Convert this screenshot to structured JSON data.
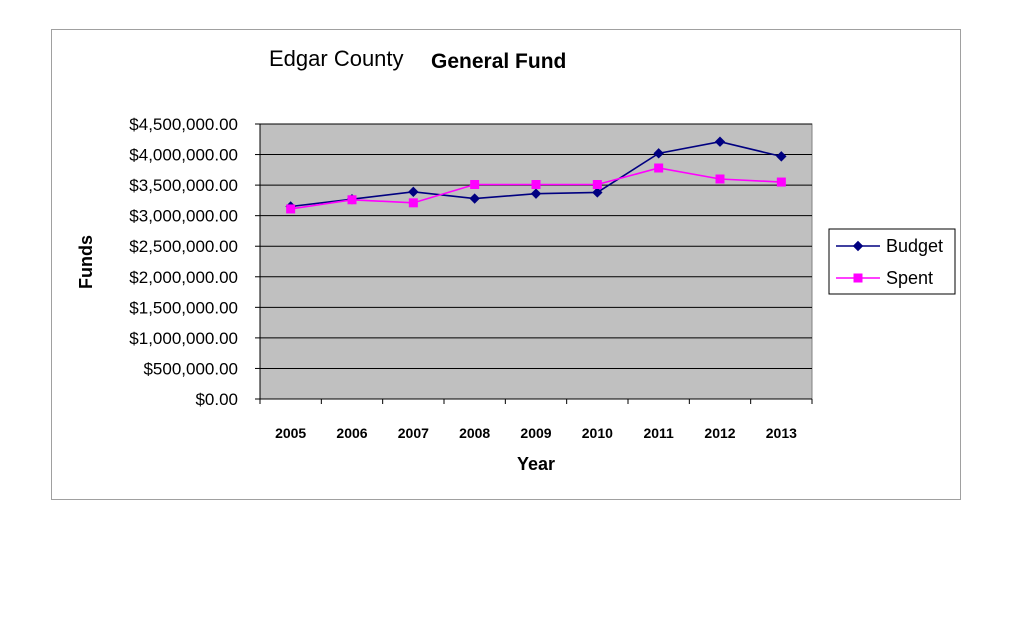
{
  "chart_data": {
    "type": "line",
    "title_parts": [
      "Edgar County",
      "General Fund"
    ],
    "xlabel": "Year",
    "ylabel": "Funds",
    "categories": [
      "2005",
      "2006",
      "2007",
      "2008",
      "2009",
      "2010",
      "2011",
      "2012",
      "2013"
    ],
    "ylim": [
      0,
      4500000
    ],
    "yticks": [
      "$0.00",
      "$500,000.00",
      "$1,000,000.00",
      "$1,500,000.00",
      "$2,000,000.00",
      "$2,500,000.00",
      "$3,000,000.00",
      "$3,500,000.00",
      "$4,000,000.00",
      "$4,500,000.00"
    ],
    "ytick_values": [
      0,
      500000,
      1000000,
      1500000,
      2000000,
      2500000,
      3000000,
      3500000,
      4000000,
      4500000
    ],
    "grid": true,
    "legend_position": "right",
    "plot_background": "#c0c0c0",
    "series": [
      {
        "name": "Budget",
        "color": "#000080",
        "marker": "diamond",
        "values": [
          3150000,
          3270000,
          3390000,
          3280000,
          3360000,
          3380000,
          4020000,
          4210000,
          3970000
        ]
      },
      {
        "name": "Spent",
        "color": "#ff00ff",
        "marker": "square",
        "values": [
          3110000,
          3260000,
          3210000,
          3510000,
          3510000,
          3510000,
          3780000,
          3600000,
          3550000
        ]
      }
    ]
  }
}
